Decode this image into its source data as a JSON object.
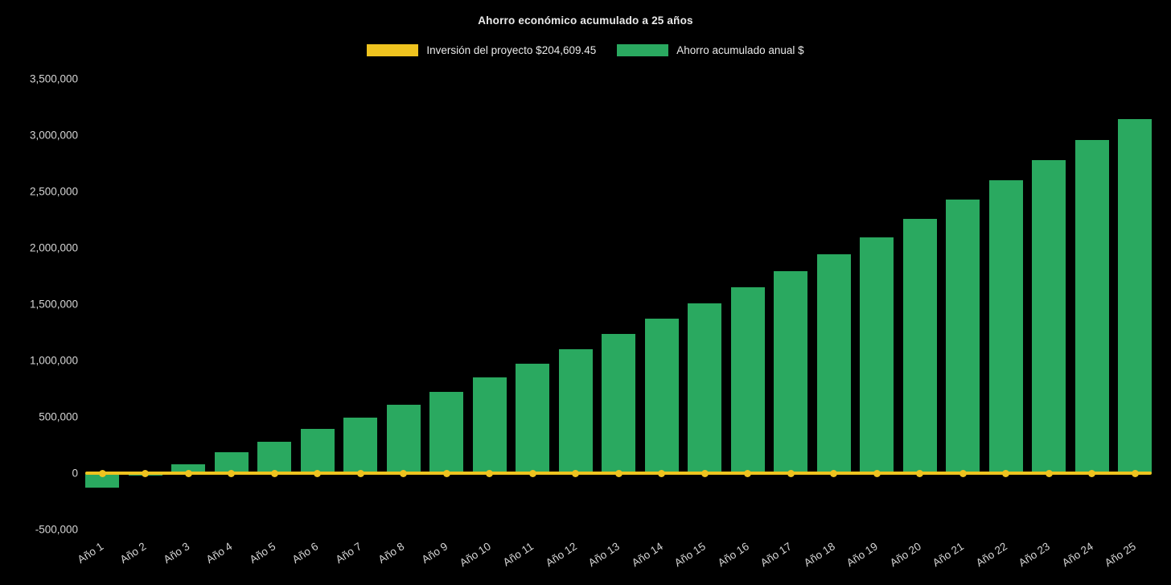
{
  "chart_data": {
    "type": "bar",
    "title": "Ahorro económico acumulado a 25 años",
    "categories": [
      "Año 1",
      "Año 2",
      "Año 3",
      "Año 4",
      "Año 5",
      "Año 6",
      "Año 7",
      "Año 8",
      "Año 9",
      "Año 10",
      "Año 11",
      "Año 12",
      "Año 13",
      "Año 14",
      "Año 15",
      "Año 16",
      "Año 17",
      "Año 18",
      "Año 19",
      "Año 20",
      "Año 21",
      "Año 22",
      "Año 23",
      "Año 24",
      "Año 25"
    ],
    "series": [
      {
        "name": "Inversión del proyecto $204,609.45",
        "type": "line",
        "color": "#EFC31F",
        "marker": "circle",
        "investment_value": 204609.45,
        "plotted_at": 0
      },
      {
        "name": "Ahorro acumulado anual $",
        "type": "bar",
        "color": "#2AA960",
        "values": [
          -130000,
          -20000,
          80000,
          185000,
          280000,
          390000,
          495000,
          610000,
          725000,
          850000,
          975000,
          1100000,
          1235000,
          1370000,
          1505000,
          1650000,
          1790000,
          1940000,
          2090000,
          2260000,
          2430000,
          2600000,
          2780000,
          2960000,
          3140000
        ]
      }
    ],
    "ylim": [
      -500000,
      3500000
    ],
    "yticks": [
      {
        "value": 3500000,
        "label": "3,500,000"
      },
      {
        "value": 3000000,
        "label": "3,000,000"
      },
      {
        "value": 2500000,
        "label": "2,500,000"
      },
      {
        "value": 2000000,
        "label": "2,000,000"
      },
      {
        "value": 1500000,
        "label": "1,500,000"
      },
      {
        "value": 1000000,
        "label": "1,000,000"
      },
      {
        "value": 500000,
        "label": "500,000"
      },
      {
        "value": 0,
        "label": "0"
      },
      {
        "value": -500000,
        "label": "-500,000"
      }
    ],
    "grid": false,
    "legend_position": "top",
    "background": "#000000"
  }
}
